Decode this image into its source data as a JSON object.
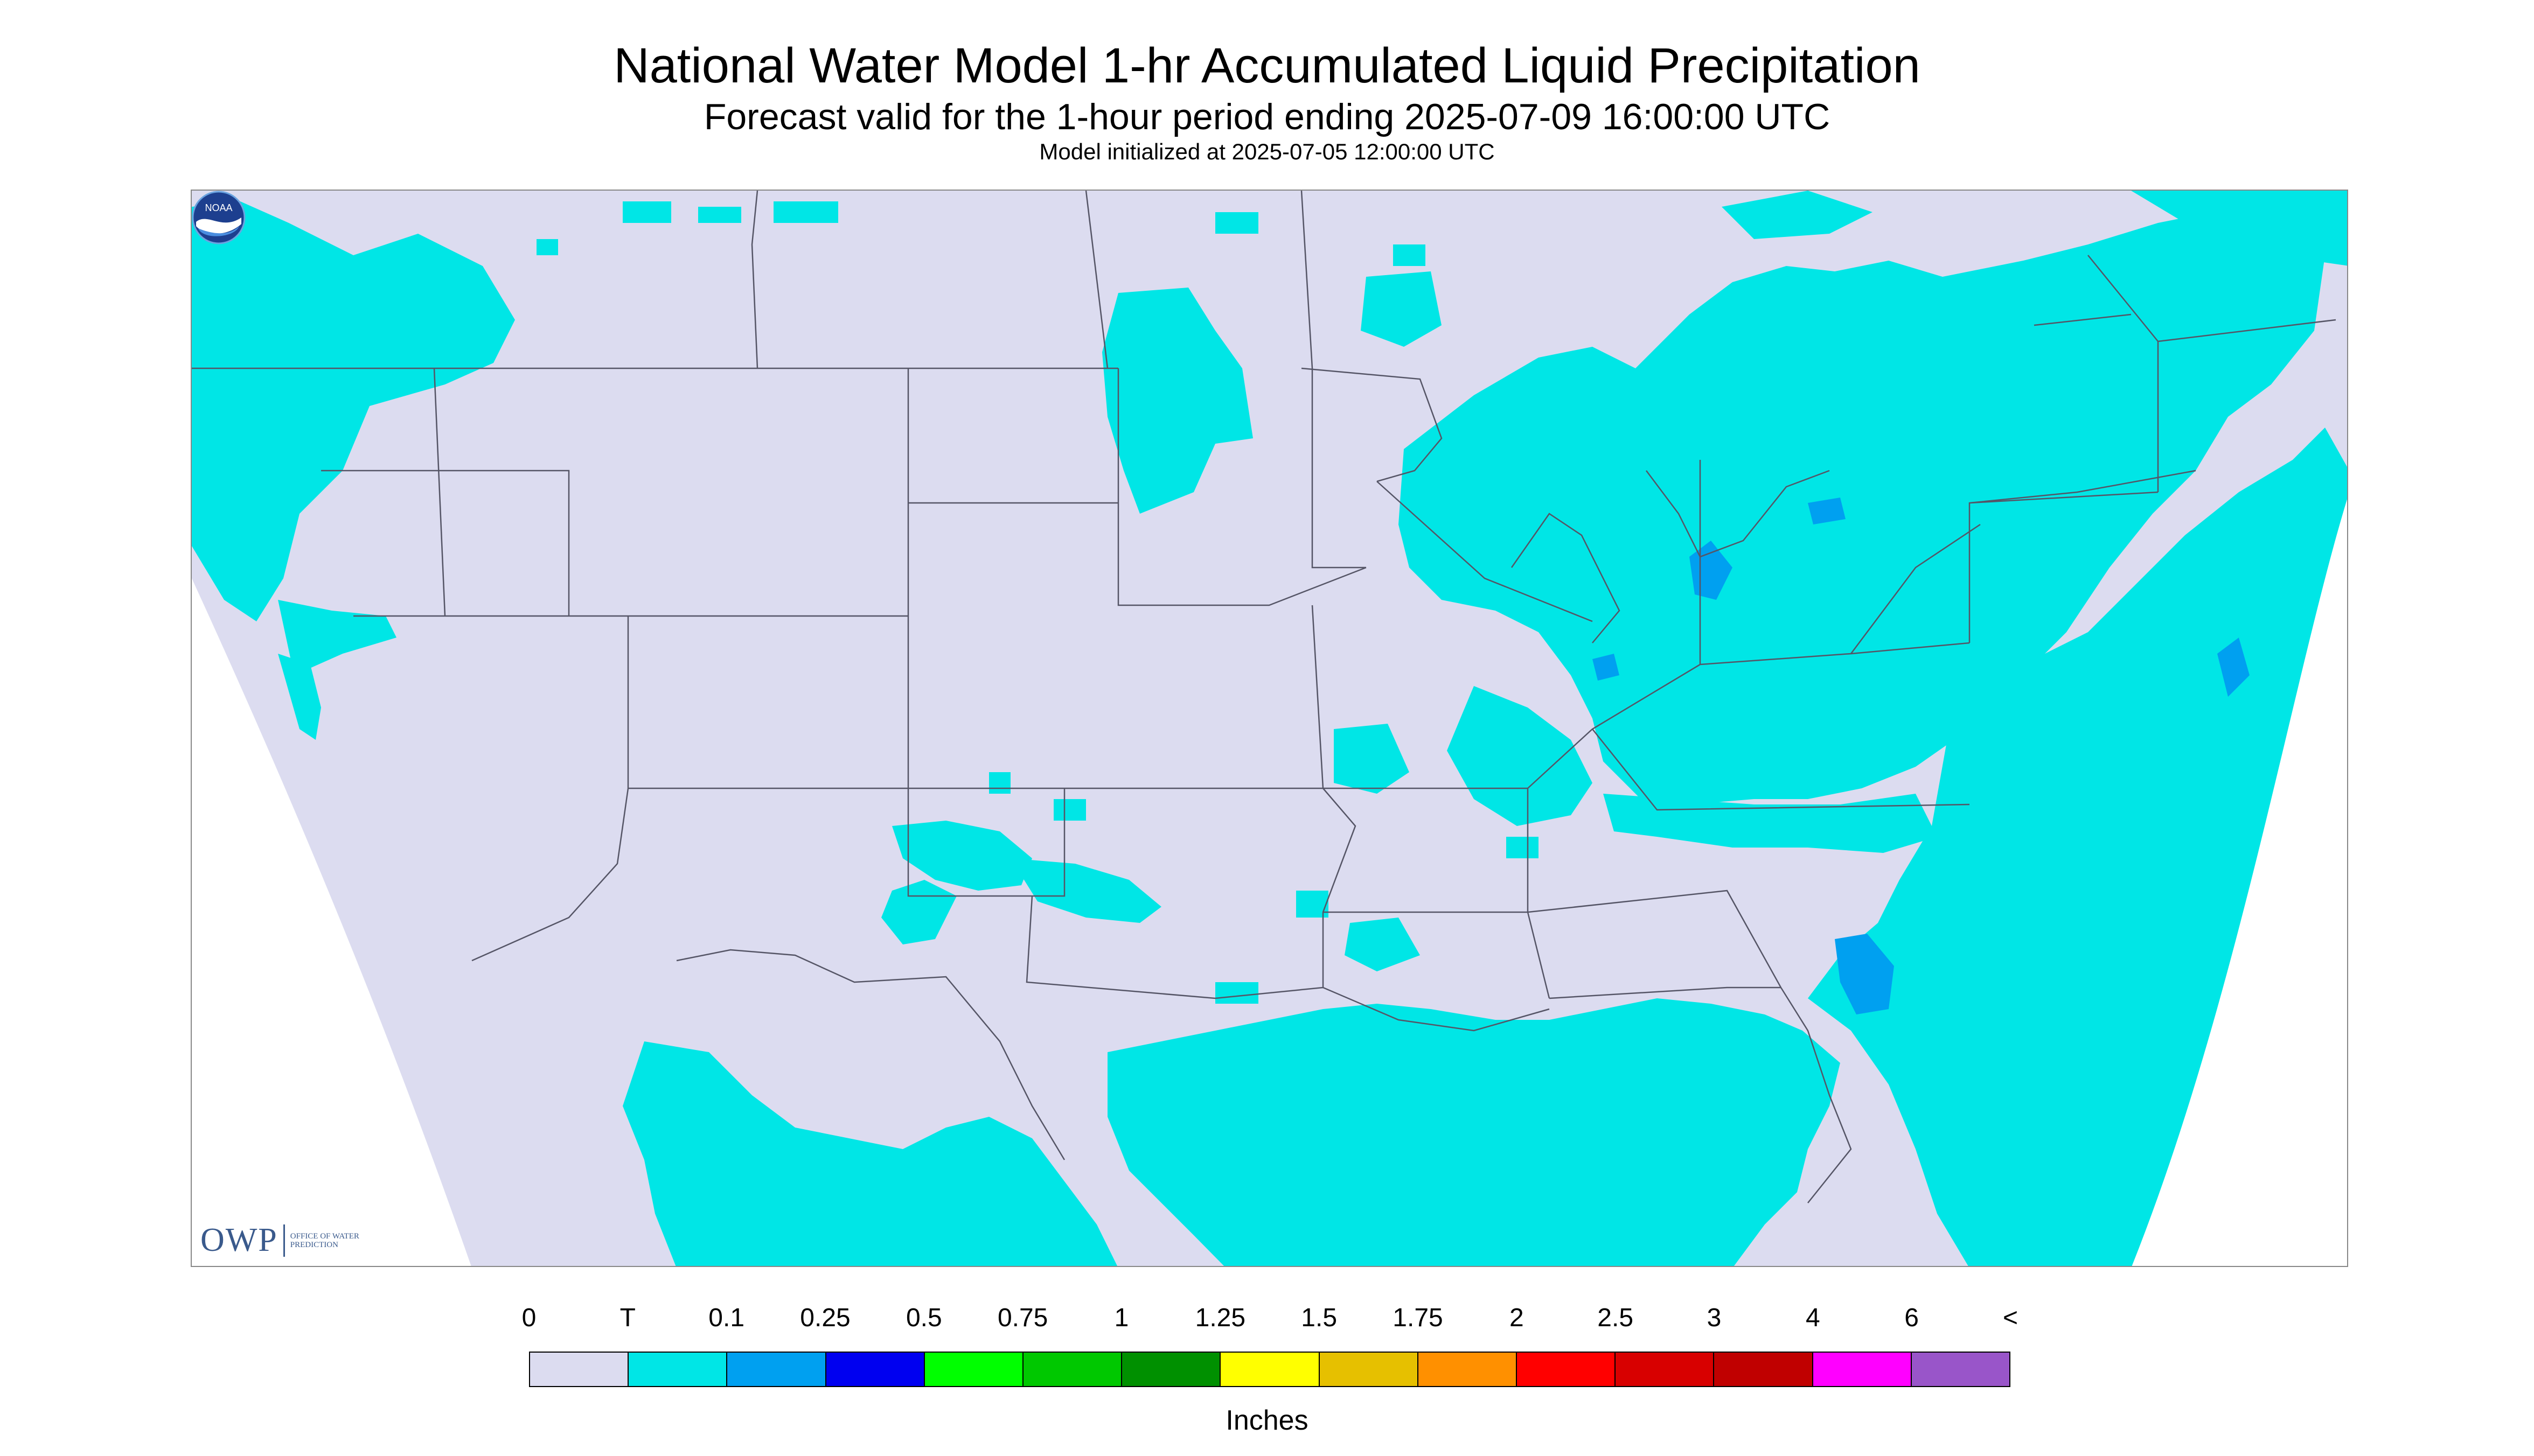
{
  "title": "National Water Model 1-hr Accumulated Liquid Precipitation",
  "subtitle": "Forecast valid for the 1-hour period ending 2025-07-09 16:00:00 UTC",
  "init_line": "Model initialized at 2025-07-05 12:00:00 UTC",
  "owp_logo": {
    "letters": "OWP",
    "subtext": "OFFICE OF WATER PREDICTION"
  },
  "noaa_logo": {
    "icon": "noaa-seal-icon",
    "text": "NOAA"
  },
  "legend": {
    "unit": "Inches",
    "ticks": [
      "0",
      "T",
      "0.1",
      "0.25",
      "0.5",
      "0.75",
      "1",
      "1.25",
      "1.5",
      "1.75",
      "2",
      "2.5",
      "3",
      "4",
      "6",
      "<"
    ],
    "colors": [
      "#dcdcf0",
      "#00e6e6",
      "#00a0f0",
      "#0000f0",
      "#00ff00",
      "#00c800",
      "#009000",
      "#ffff00",
      "#e6c000",
      "#ff9000",
      "#ff0000",
      "#d80000",
      "#c00000",
      "#ff00ff",
      "#9955c9"
    ]
  },
  "map": {
    "background_color": "#dcdcf0",
    "outside_color": "#ffffff",
    "precip_trace_color": "#00e6e6",
    "precip_light_color": "#00a0f0",
    "boundary_color": "#555566"
  }
}
